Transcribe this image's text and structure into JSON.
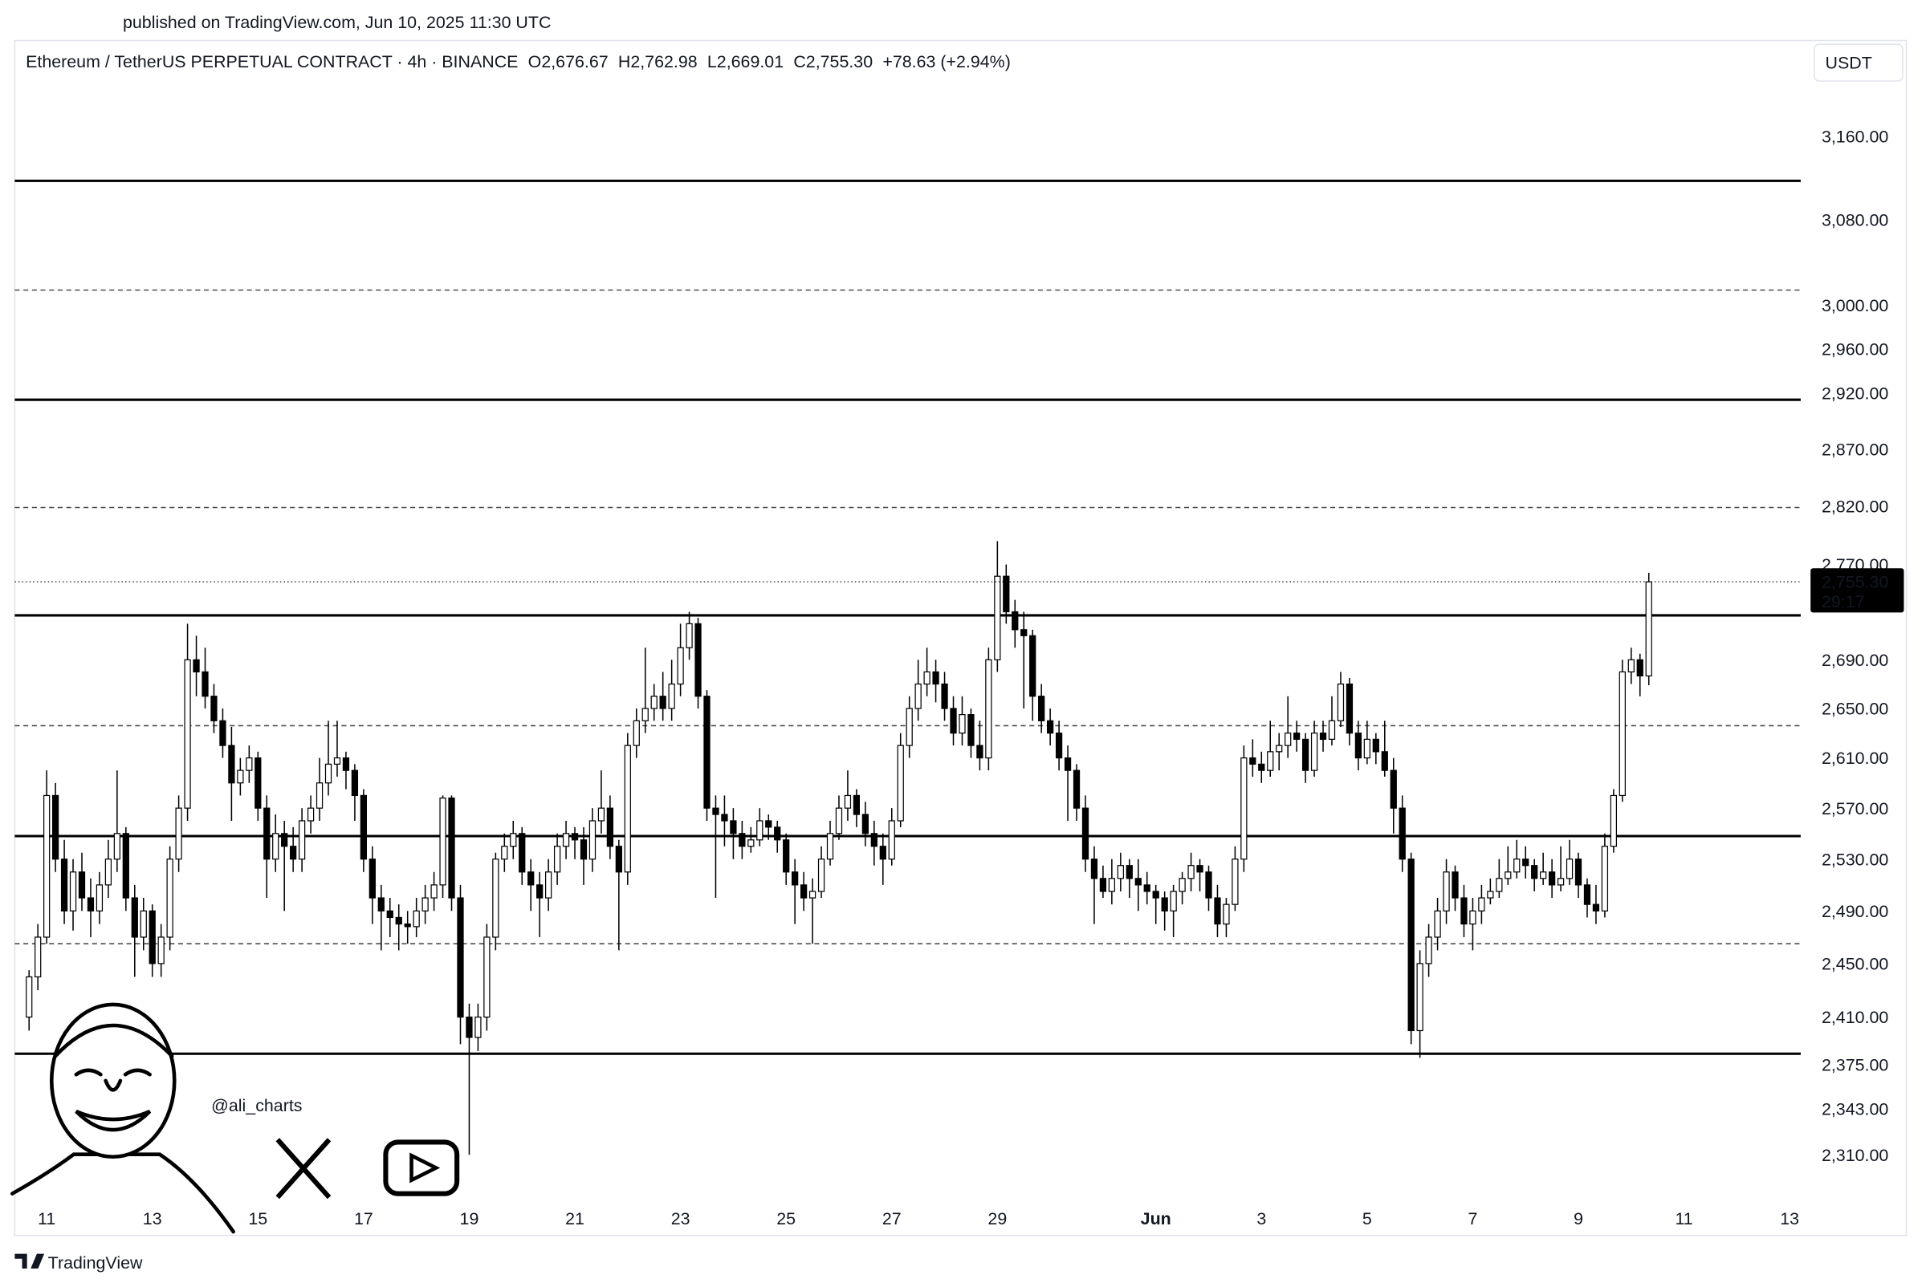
{
  "chart_data": {
    "type": "candlestick",
    "published": "published on TradingView.com, Jun 10, 2025 11:30 UTC",
    "title": "Ethereum / TetherUS PERPETUAL CONTRACT · 4h · BINANCE",
    "ohlc_labels": [
      "O2,676.67",
      "H2,762.98",
      "L2,669.01",
      "C2,755.30"
    ],
    "change": "+78.63 (+2.94%)",
    "currency": "USDT",
    "watermark": "@ali_charts",
    "brand": "TradingView",
    "log_scale": true,
    "grid": false,
    "up_color": "#ffffff",
    "down_color": "#000000",
    "ylim": [
      2280,
      3252
    ],
    "yticks": [
      {
        "value": 3160,
        "label": "3,160.00"
      },
      {
        "value": 3080,
        "label": "3,080.00"
      },
      {
        "value": 3000,
        "label": "3,000.00"
      },
      {
        "value": 2960,
        "label": "2,960.00"
      },
      {
        "value": 2920,
        "label": "2,920.00"
      },
      {
        "value": 2870,
        "label": "2,870.00"
      },
      {
        "value": 2820,
        "label": "2,820.00"
      },
      {
        "value": 2770,
        "label": "2,770.00"
      },
      {
        "value": 2690,
        "label": "2,690.00"
      },
      {
        "value": 2650,
        "label": "2,650.00"
      },
      {
        "value": 2610,
        "label": "2,610.00"
      },
      {
        "value": 2570,
        "label": "2,570.00"
      },
      {
        "value": 2530,
        "label": "2,530.00"
      },
      {
        "value": 2490,
        "label": "2,490.00"
      },
      {
        "value": 2450,
        "label": "2,450.00"
      },
      {
        "value": 2410,
        "label": "2,410.00"
      },
      {
        "value": 2375,
        "label": "2,375.00"
      },
      {
        "value": 2343,
        "label": "2,343.00"
      },
      {
        "value": 2310,
        "label": "2,310.00"
      }
    ],
    "xtick_labels": [
      "11",
      "13",
      "15",
      "17",
      "19",
      "21",
      "23",
      "25",
      "27",
      "29",
      "Jun",
      "3",
      "5",
      "7",
      "9",
      "11",
      "13"
    ],
    "last_price": {
      "value": 2755.3,
      "label": "2,755.30"
    },
    "countdown": "29:17",
    "levels": [
      {
        "price": 3117,
        "style": "solid"
      },
      {
        "price": 3014,
        "style": "dashed"
      },
      {
        "price": 2914,
        "style": "solid"
      },
      {
        "price": 2819,
        "style": "dashed"
      },
      {
        "price": 2727,
        "style": "solid"
      },
      {
        "price": 2636,
        "style": "dashed"
      },
      {
        "price": 2548,
        "style": "solid"
      },
      {
        "price": 2465,
        "style": "dashed"
      },
      {
        "price": 2383,
        "style": "solid"
      }
    ],
    "candles": [
      [
        2410,
        2445,
        2400,
        2440
      ],
      [
        2440,
        2480,
        2430,
        2470
      ],
      [
        2470,
        2600,
        2465,
        2580
      ],
      [
        2580,
        2590,
        2520,
        2530
      ],
      [
        2530,
        2545,
        2480,
        2490
      ],
      [
        2490,
        2530,
        2475,
        2520
      ],
      [
        2520,
        2535,
        2490,
        2500
      ],
      [
        2500,
        2515,
        2470,
        2490
      ],
      [
        2490,
        2520,
        2480,
        2510
      ],
      [
        2510,
        2545,
        2500,
        2530
      ],
      [
        2530,
        2600,
        2520,
        2550
      ],
      [
        2550,
        2555,
        2490,
        2500
      ],
      [
        2500,
        2510,
        2440,
        2470
      ],
      [
        2470,
        2500,
        2460,
        2490
      ],
      [
        2490,
        2495,
        2440,
        2450
      ],
      [
        2450,
        2480,
        2440,
        2470
      ],
      [
        2470,
        2540,
        2460,
        2530
      ],
      [
        2530,
        2580,
        2520,
        2570
      ],
      [
        2570,
        2720,
        2560,
        2690
      ],
      [
        2690,
        2710,
        2660,
        2680
      ],
      [
        2680,
        2700,
        2650,
        2660
      ],
      [
        2660,
        2670,
        2630,
        2640
      ],
      [
        2640,
        2650,
        2610,
        2620
      ],
      [
        2620,
        2635,
        2560,
        2590
      ],
      [
        2590,
        2610,
        2580,
        2600
      ],
      [
        2600,
        2620,
        2590,
        2610
      ],
      [
        2610,
        2615,
        2560,
        2570
      ],
      [
        2570,
        2580,
        2500,
        2530
      ],
      [
        2530,
        2565,
        2520,
        2550
      ],
      [
        2550,
        2560,
        2490,
        2540
      ],
      [
        2540,
        2555,
        2520,
        2530
      ],
      [
        2530,
        2570,
        2520,
        2560
      ],
      [
        2560,
        2580,
        2550,
        2570
      ],
      [
        2570,
        2610,
        2560,
        2590
      ],
      [
        2590,
        2640,
        2580,
        2605
      ],
      [
        2605,
        2640,
        2595,
        2610
      ],
      [
        2610,
        2615,
        2585,
        2600
      ],
      [
        2600,
        2605,
        2560,
        2580
      ],
      [
        2580,
        2585,
        2520,
        2530
      ],
      [
        2530,
        2540,
        2480,
        2500
      ],
      [
        2500,
        2510,
        2460,
        2490
      ],
      [
        2490,
        2500,
        2470,
        2485
      ],
      [
        2485,
        2495,
        2460,
        2480
      ],
      [
        2480,
        2490,
        2465,
        2478
      ],
      [
        2478,
        2500,
        2470,
        2490
      ],
      [
        2490,
        2510,
        2480,
        2500
      ],
      [
        2500,
        2520,
        2490,
        2510
      ],
      [
        2510,
        2580,
        2500,
        2578
      ],
      [
        2578,
        2580,
        2490,
        2500
      ],
      [
        2500,
        2510,
        2390,
        2410
      ],
      [
        2410,
        2420,
        2310,
        2395
      ],
      [
        2395,
        2420,
        2385,
        2410
      ],
      [
        2410,
        2480,
        2400,
        2470
      ],
      [
        2470,
        2535,
        2460,
        2530
      ],
      [
        2530,
        2550,
        2520,
        2540
      ],
      [
        2540,
        2560,
        2530,
        2550
      ],
      [
        2550,
        2555,
        2510,
        2520
      ],
      [
        2520,
        2530,
        2490,
        2510
      ],
      [
        2510,
        2520,
        2470,
        2500
      ],
      [
        2500,
        2530,
        2490,
        2520
      ],
      [
        2520,
        2550,
        2510,
        2540
      ],
      [
        2540,
        2560,
        2530,
        2550
      ],
      [
        2550,
        2555,
        2530,
        2545
      ],
      [
        2545,
        2555,
        2510,
        2530
      ],
      [
        2530,
        2570,
        2520,
        2560
      ],
      [
        2560,
        2600,
        2550,
        2570
      ],
      [
        2570,
        2580,
        2530,
        2540
      ],
      [
        2540,
        2545,
        2460,
        2520
      ],
      [
        2520,
        2630,
        2510,
        2620
      ],
      [
        2620,
        2650,
        2610,
        2640
      ],
      [
        2640,
        2700,
        2630,
        2650
      ],
      [
        2650,
        2670,
        2640,
        2660
      ],
      [
        2660,
        2680,
        2640,
        2650
      ],
      [
        2650,
        2690,
        2640,
        2670
      ],
      [
        2670,
        2720,
        2660,
        2700
      ],
      [
        2700,
        2730,
        2690,
        2720
      ],
      [
        2720,
        2725,
        2650,
        2660
      ],
      [
        2660,
        2665,
        2560,
        2570
      ],
      [
        2570,
        2580,
        2500,
        2565
      ],
      [
        2565,
        2580,
        2540,
        2560
      ],
      [
        2560,
        2570,
        2530,
        2550
      ],
      [
        2550,
        2560,
        2530,
        2540
      ],
      [
        2540,
        2555,
        2535,
        2545
      ],
      [
        2545,
        2570,
        2540,
        2560
      ],
      [
        2560,
        2565,
        2545,
        2555
      ],
      [
        2555,
        2560,
        2535,
        2545
      ],
      [
        2545,
        2550,
        2510,
        2520
      ],
      [
        2520,
        2530,
        2480,
        2510
      ],
      [
        2510,
        2520,
        2490,
        2500
      ],
      [
        2500,
        2515,
        2465,
        2505
      ],
      [
        2505,
        2540,
        2500,
        2530
      ],
      [
        2530,
        2560,
        2525,
        2550
      ],
      [
        2550,
        2580,
        2545,
        2570
      ],
      [
        2570,
        2600,
        2560,
        2580
      ],
      [
        2580,
        2585,
        2555,
        2565
      ],
      [
        2565,
        2575,
        2540,
        2550
      ],
      [
        2550,
        2560,
        2525,
        2540
      ],
      [
        2540,
        2550,
        2510,
        2530
      ],
      [
        2530,
        2570,
        2525,
        2560
      ],
      [
        2560,
        2630,
        2555,
        2620
      ],
      [
        2620,
        2660,
        2610,
        2650
      ],
      [
        2650,
        2690,
        2640,
        2670
      ],
      [
        2670,
        2700,
        2660,
        2680
      ],
      [
        2680,
        2690,
        2655,
        2670
      ],
      [
        2670,
        2680,
        2640,
        2650
      ],
      [
        2650,
        2660,
        2620,
        2630
      ],
      [
        2630,
        2660,
        2620,
        2645
      ],
      [
        2645,
        2650,
        2610,
        2620
      ],
      [
        2620,
        2640,
        2600,
        2610
      ],
      [
        2610,
        2700,
        2600,
        2690
      ],
      [
        2690,
        2790,
        2680,
        2760
      ],
      [
        2760,
        2770,
        2720,
        2730
      ],
      [
        2730,
        2740,
        2700,
        2715
      ],
      [
        2715,
        2730,
        2650,
        2710
      ],
      [
        2710,
        2715,
        2640,
        2660
      ],
      [
        2660,
        2670,
        2630,
        2640
      ],
      [
        2640,
        2650,
        2620,
        2630
      ],
      [
        2630,
        2640,
        2600,
        2610
      ],
      [
        2610,
        2620,
        2560,
        2600
      ],
      [
        2600,
        2605,
        2560,
        2570
      ],
      [
        2570,
        2580,
        2520,
        2530
      ],
      [
        2530,
        2540,
        2480,
        2515
      ],
      [
        2515,
        2525,
        2500,
        2505
      ],
      [
        2505,
        2530,
        2495,
        2515
      ],
      [
        2515,
        2535,
        2505,
        2525
      ],
      [
        2525,
        2530,
        2500,
        2515
      ],
      [
        2515,
        2530,
        2490,
        2510
      ],
      [
        2510,
        2520,
        2495,
        2505
      ],
      [
        2505,
        2510,
        2480,
        2500
      ],
      [
        2500,
        2505,
        2475,
        2490
      ],
      [
        2490,
        2510,
        2470,
        2505
      ],
      [
        2505,
        2520,
        2495,
        2515
      ],
      [
        2515,
        2535,
        2505,
        2525
      ],
      [
        2525,
        2530,
        2505,
        2520
      ],
      [
        2520,
        2525,
        2490,
        2500
      ],
      [
        2500,
        2510,
        2470,
        2480
      ],
      [
        2480,
        2500,
        2470,
        2495
      ],
      [
        2495,
        2540,
        2490,
        2530
      ],
      [
        2530,
        2620,
        2520,
        2610
      ],
      [
        2610,
        2625,
        2595,
        2605
      ],
      [
        2605,
        2615,
        2590,
        2600
      ],
      [
        2600,
        2640,
        2595,
        2615
      ],
      [
        2615,
        2630,
        2600,
        2620
      ],
      [
        2620,
        2660,
        2610,
        2630
      ],
      [
        2630,
        2640,
        2615,
        2625
      ],
      [
        2625,
        2630,
        2590,
        2600
      ],
      [
        2600,
        2640,
        2595,
        2630
      ],
      [
        2630,
        2640,
        2615,
        2625
      ],
      [
        2625,
        2660,
        2620,
        2640
      ],
      [
        2640,
        2680,
        2635,
        2670
      ],
      [
        2670,
        2675,
        2620,
        2630
      ],
      [
        2630,
        2640,
        2600,
        2610
      ],
      [
        2610,
        2640,
        2605,
        2625
      ],
      [
        2625,
        2630,
        2605,
        2615
      ],
      [
        2615,
        2640,
        2595,
        2600
      ],
      [
        2600,
        2610,
        2550,
        2570
      ],
      [
        2570,
        2580,
        2520,
        2530
      ],
      [
        2530,
        2535,
        2390,
        2400
      ],
      [
        2400,
        2460,
        2380,
        2450
      ],
      [
        2450,
        2480,
        2440,
        2470
      ],
      [
        2470,
        2500,
        2460,
        2490
      ],
      [
        2490,
        2530,
        2480,
        2520
      ],
      [
        2520,
        2525,
        2490,
        2500
      ],
      [
        2500,
        2510,
        2470,
        2480
      ],
      [
        2480,
        2500,
        2460,
        2490
      ],
      [
        2490,
        2510,
        2480,
        2500
      ],
      [
        2500,
        2515,
        2495,
        2505
      ],
      [
        2505,
        2530,
        2500,
        2515
      ],
      [
        2515,
        2540,
        2510,
        2520
      ],
      [
        2520,
        2545,
        2515,
        2530
      ],
      [
        2530,
        2540,
        2515,
        2525
      ],
      [
        2525,
        2530,
        2505,
        2515
      ],
      [
        2515,
        2535,
        2510,
        2520
      ],
      [
        2520,
        2530,
        2500,
        2510
      ],
      [
        2510,
        2540,
        2505,
        2515
      ],
      [
        2515,
        2545,
        2510,
        2530
      ],
      [
        2530,
        2535,
        2500,
        2510
      ],
      [
        2510,
        2515,
        2485,
        2495
      ],
      [
        2495,
        2510,
        2480,
        2490
      ],
      [
        2490,
        2550,
        2485,
        2540
      ],
      [
        2540,
        2585,
        2535,
        2580
      ],
      [
        2580,
        2690,
        2575,
        2680
      ],
      [
        2680,
        2700,
        2670,
        2690
      ],
      [
        2690,
        2695,
        2660,
        2676.67
      ],
      [
        2676.67,
        2762.98,
        2669.01,
        2755.3
      ]
    ]
  }
}
